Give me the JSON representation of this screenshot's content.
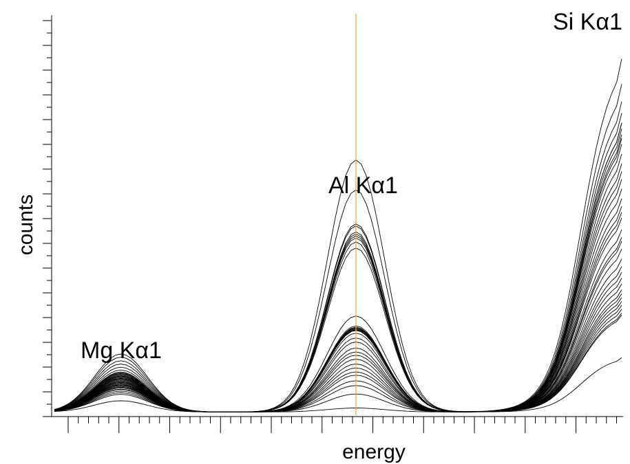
{
  "chart_data": {
    "type": "line",
    "title": "",
    "xlabel": "energy",
    "ylabel": "counts",
    "grid": false,
    "legend": "none",
    "xlim": [
      0,
      111
    ],
    "ylim": [
      0,
      1000
    ],
    "marker_x": 59,
    "marker_color": "#e8a33c",
    "line_color": "#000000",
    "annotations": [
      {
        "text": "Mg Kα1",
        "x": 13,
        "y": 155
      },
      {
        "text": "Al Kα1",
        "x": 59,
        "y": 545
      },
      {
        "text": "Si Kα1",
        "x": 110,
        "y": 980
      }
    ],
    "peaks": {
      "mg_center": 13,
      "al_center": 59,
      "si_top": 110
    },
    "series": [
      {
        "mg": 28,
        "al": 10,
        "si": 140
      },
      {
        "mg": 48,
        "al": 45,
        "si": 250
      },
      {
        "mg": 57,
        "al": 66,
        "si": 255
      },
      {
        "mg": 62,
        "al": 78,
        "si": 265
      },
      {
        "mg": 68,
        "al": 92,
        "si": 275
      },
      {
        "mg": 74,
        "al": 100,
        "si": 285
      },
      {
        "mg": 80,
        "al": 110,
        "si": 295
      },
      {
        "mg": 86,
        "al": 120,
        "si": 305
      },
      {
        "mg": 92,
        "al": 132,
        "si": 315
      },
      {
        "mg": 98,
        "al": 142,
        "si": 330
      },
      {
        "mg": 105,
        "al": 150,
        "si": 345
      },
      {
        "mg": 112,
        "al": 160,
        "si": 360
      },
      {
        "mg": 120,
        "al": 175,
        "si": 375
      },
      {
        "mg": 128,
        "al": 185,
        "si": 395
      },
      {
        "mg": 137,
        "al": 197,
        "si": 420
      },
      {
        "mg": 145,
        "al": 205,
        "si": 440
      },
      {
        "mg": 96,
        "al": 205,
        "si": 450
      },
      {
        "mg": 90,
        "al": 210,
        "si": 470
      },
      {
        "mg": 84,
        "al": 240,
        "si": 500
      },
      {
        "mg": 100,
        "al": 208,
        "si": 515
      },
      {
        "mg": 70,
        "al": 215,
        "si": 530
      },
      {
        "mg": 60,
        "al": 210,
        "si": 550
      },
      {
        "mg": 88,
        "al": 206,
        "si": 575
      },
      {
        "mg": 52,
        "al": 212,
        "si": 600
      },
      {
        "mg": 78,
        "al": 204,
        "si": 620
      },
      {
        "mg": 44,
        "al": 204,
        "si": 640
      },
      {
        "mg": 82,
        "al": 210,
        "si": 665
      },
      {
        "mg": 94,
        "al": 410,
        "si": 690
      },
      {
        "mg": 66,
        "al": 425,
        "si": 705
      },
      {
        "mg": 76,
        "al": 435,
        "si": 715
      },
      {
        "mg": 56,
        "al": 445,
        "si": 730
      },
      {
        "mg": 72,
        "al": 470,
        "si": 745
      },
      {
        "mg": 64,
        "al": 555,
        "si": 770
      },
      {
        "mg": 84,
        "al": 465,
        "si": 800
      },
      {
        "mg": 68,
        "al": 450,
        "si": 845
      },
      {
        "mg": 74,
        "al": 630,
        "si": 910
      },
      {
        "mg": 90,
        "al": 440,
        "si": 745
      }
    ]
  }
}
